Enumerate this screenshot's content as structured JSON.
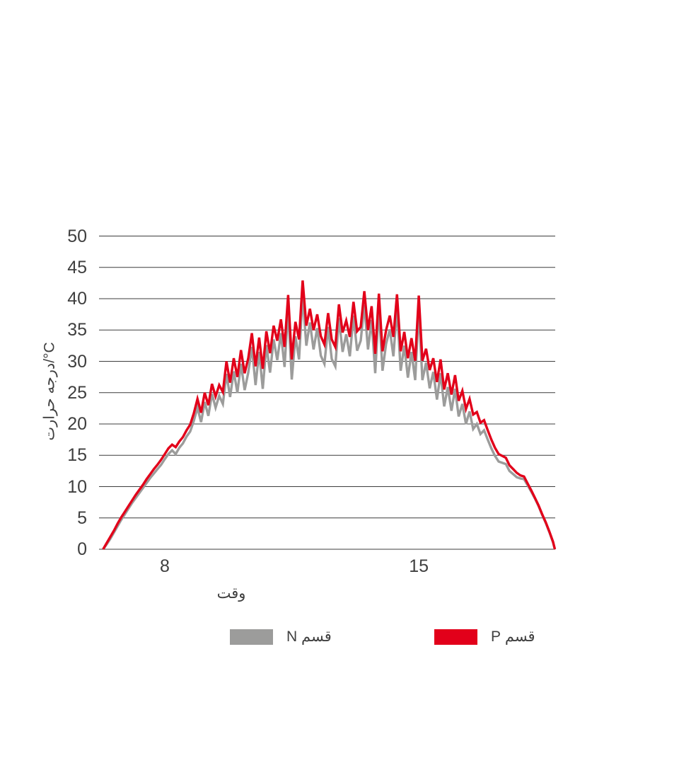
{
  "chart_data": {
    "type": "line",
    "title": "",
    "xlabel": "وقت",
    "ylabel": "درجه حرارت/°C",
    "xticks": [
      8,
      15
    ],
    "yticks": [
      0,
      5,
      10,
      15,
      20,
      25,
      30,
      35,
      40,
      45,
      50
    ],
    "xlim": [
      6.25,
      18.8
    ],
    "ylim": [
      0,
      50
    ],
    "grid": "horizontal-only",
    "grid_color": "#3d3d3d",
    "text_color": "#3f3f3f",
    "legend_position": "bottom",
    "legend": [
      {
        "label": "قسم N",
        "color": "#9c9c9b"
      },
      {
        "label": "قسم P",
        "color": "#e2001a"
      }
    ],
    "x": [
      6.3,
      6.4,
      6.5,
      6.6,
      6.7,
      6.8,
      6.9,
      7.0,
      7.1,
      7.2,
      7.3,
      7.4,
      7.5,
      7.6,
      7.7,
      7.8,
      7.9,
      8.0,
      8.1,
      8.2,
      8.3,
      8.4,
      8.5,
      8.6,
      8.7,
      8.8,
      8.9,
      9.0,
      9.1,
      9.2,
      9.3,
      9.4,
      9.5,
      9.6,
      9.7,
      9.8,
      9.9,
      10.0,
      10.1,
      10.2,
      10.3,
      10.4,
      10.5,
      10.6,
      10.7,
      10.8,
      10.9,
      11.0,
      11.1,
      11.2,
      11.3,
      11.4,
      11.5,
      11.6,
      11.7,
      11.8,
      11.9,
      12.0,
      12.1,
      12.2,
      12.3,
      12.4,
      12.5,
      12.6,
      12.7,
      12.8,
      12.9,
      13.0,
      13.1,
      13.2,
      13.3,
      13.4,
      13.5,
      13.6,
      13.7,
      13.8,
      13.9,
      14.0,
      14.1,
      14.2,
      14.3,
      14.4,
      14.5,
      14.6,
      14.7,
      14.8,
      14.9,
      15.0,
      15.1,
      15.2,
      15.3,
      15.4,
      15.5,
      15.6,
      15.7,
      15.8,
      15.9,
      16.0,
      16.1,
      16.2,
      16.3,
      16.4,
      16.5,
      16.6,
      16.7,
      16.8,
      16.9,
      17.0,
      17.1,
      17.2,
      17.3,
      17.4,
      17.5,
      17.6,
      17.7,
      17.8,
      17.9,
      18.0,
      18.1,
      18.2,
      18.3,
      18.4,
      18.5,
      18.6,
      18.7,
      18.75
    ],
    "series": [
      {
        "name": "قسم P",
        "color": "#e2001a",
        "values": [
          0.0,
          1.0,
          2.0,
          3.0,
          4.1,
          5.1,
          6.0,
          6.9,
          7.8,
          8.7,
          9.5,
          10.3,
          11.2,
          12.0,
          12.8,
          13.5,
          14.3,
          15.2,
          16.1,
          16.7,
          16.3,
          17.2,
          17.9,
          19.0,
          19.9,
          21.7,
          24.0,
          21.8,
          25.0,
          23.0,
          26.4,
          24.4,
          26.2,
          25.1,
          30.0,
          26.6,
          30.5,
          27.5,
          31.8,
          28.1,
          30.5,
          34.5,
          29.2,
          33.8,
          28.8,
          34.8,
          31.3,
          35.7,
          33.3,
          36.7,
          32.3,
          40.6,
          30.3,
          36.3,
          33.5,
          42.9,
          35.7,
          38.4,
          35.0,
          37.5,
          34.0,
          32.7,
          37.7,
          33.5,
          32.3,
          39.1,
          34.6,
          36.5,
          33.9,
          39.5,
          34.8,
          35.5,
          41.2,
          35.0,
          38.8,
          31.2,
          40.8,
          31.6,
          35.0,
          37.3,
          33.9,
          40.7,
          31.6,
          34.7,
          30.5,
          33.7,
          30.1,
          40.5,
          30.1,
          32.0,
          28.6,
          30.5,
          26.7,
          30.3,
          25.5,
          28.1,
          24.7,
          27.8,
          23.7,
          25.3,
          22.4,
          24.0,
          21.5,
          21.9,
          20.2,
          20.6,
          19.0,
          17.5,
          16.2,
          15.2,
          14.9,
          14.6,
          13.4,
          12.8,
          12.2,
          11.8,
          11.6,
          10.5,
          9.4,
          8.2,
          7.0,
          5.6,
          4.3,
          2.8,
          1.2,
          0.0
        ]
      },
      {
        "name": "قسم N",
        "color": "#9c9c9b",
        "values": [
          0.0,
          0.8,
          1.7,
          2.7,
          3.7,
          4.7,
          5.6,
          6.5,
          7.4,
          8.2,
          9.0,
          9.8,
          10.6,
          11.4,
          12.1,
          12.8,
          13.5,
          14.4,
          15.2,
          15.8,
          15.2,
          16.2,
          16.9,
          18.0,
          18.8,
          20.5,
          22.6,
          20.3,
          23.5,
          21.3,
          24.8,
          22.6,
          24.5,
          23.2,
          28.0,
          24.3,
          28.4,
          25.0,
          29.6,
          25.4,
          28.2,
          32.3,
          26.2,
          31.5,
          25.6,
          32.6,
          28.2,
          33.5,
          30.2,
          34.5,
          29.1,
          38.4,
          27.1,
          34.0,
          30.3,
          40.6,
          32.5,
          36.2,
          31.9,
          35.3,
          30.9,
          29.6,
          35.5,
          30.4,
          29.2,
          36.9,
          31.5,
          34.3,
          30.8,
          37.3,
          31.7,
          33.3,
          39.0,
          31.9,
          36.6,
          28.1,
          38.6,
          28.5,
          32.8,
          35.1,
          30.8,
          38.5,
          28.5,
          32.5,
          27.4,
          31.5,
          27.0,
          38.3,
          27.0,
          29.8,
          25.7,
          28.3,
          23.9,
          28.1,
          22.8,
          25.9,
          22.1,
          25.6,
          21.2,
          23.2,
          20.0,
          22.0,
          19.2,
          20.0,
          18.4,
          19.0,
          17.5,
          16.1,
          14.9,
          14.0,
          13.8,
          13.6,
          12.5,
          12.0,
          11.5,
          11.3,
          11.2,
          10.2,
          9.2,
          8.1,
          6.9,
          5.5,
          4.2,
          2.7,
          1.1,
          0.0
        ]
      }
    ]
  }
}
